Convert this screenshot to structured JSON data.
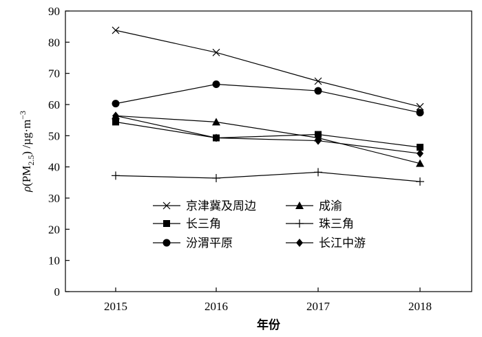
{
  "chart_data": {
    "type": "line",
    "xlabel": "年份",
    "ylabel": {
      "rho": "ρ",
      "paren_open": "(PM",
      "sub": "2.5",
      "paren_close": ") /µg·m",
      "sup": "−3"
    },
    "ylim": [
      0,
      90
    ],
    "yticks": [
      0,
      10,
      20,
      30,
      40,
      50,
      60,
      70,
      80,
      90
    ],
    "categories": [
      "2015",
      "2016",
      "2017",
      "2018"
    ],
    "grid": false,
    "legend_position": "lower-center",
    "series": [
      {
        "name": "京津冀及周边",
        "marker": "x",
        "values": [
          83.8,
          76.7,
          67.5,
          59.3
        ]
      },
      {
        "name": "成渝",
        "marker": "triangle",
        "values": [
          56.4,
          54.4,
          49.3,
          41.1
        ]
      },
      {
        "name": "长三角",
        "marker": "square",
        "values": [
          54.4,
          49.3,
          50.4,
          46.3
        ]
      },
      {
        "name": "珠三角",
        "marker": "plus",
        "values": [
          37.2,
          36.4,
          38.3,
          35.3
        ]
      },
      {
        "name": "汾渭平原",
        "marker": "circle",
        "values": [
          60.3,
          66.5,
          64.4,
          57.4
        ]
      },
      {
        "name": "长江中游",
        "marker": "diamond",
        "values": [
          56.4,
          49.3,
          48.4,
          44.3
        ]
      }
    ]
  }
}
